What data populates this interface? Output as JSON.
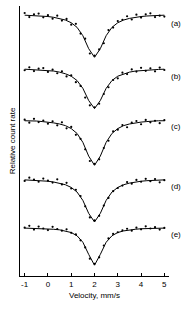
{
  "chart_data": {
    "type": "scatter",
    "x_label": "Velocity, mm/s",
    "y_label": "Relative count rate",
    "xlim": [
      -1.2,
      5.2
    ],
    "xticks": [
      -1,
      0,
      1,
      2,
      3,
      4,
      5
    ],
    "ylim": [
      0,
      100
    ],
    "tick_labels": "x",
    "grid": false,
    "series": [
      {
        "name": "(a)",
        "type": "scatter",
        "marker": "dot",
        "color": "#000000",
        "x": [
          -1,
          -0.8,
          -0.6,
          -0.4,
          -0.2,
          0,
          0.2,
          0.4,
          0.6,
          0.8,
          1,
          1.2,
          1.4,
          1.6,
          1.8,
          2,
          2.2,
          2.4,
          2.6,
          2.8,
          3,
          3.2,
          3.4,
          3.6,
          3.8,
          4,
          4.2,
          4.4,
          4.6,
          4.8,
          5
        ],
        "values": [
          97.4,
          95.9,
          96.9,
          97.2,
          95.8,
          96.6,
          95.3,
          96.4,
          94.6,
          95.2,
          93.1,
          93.4,
          89.8,
          87.9,
          82.4,
          81.6,
          83.9,
          86.2,
          91.1,
          92.0,
          94.4,
          94.9,
          96.2,
          95.0,
          96.8,
          95.7,
          96.9,
          97.3,
          95.9,
          96.4,
          96.1
        ]
      },
      {
        "type": "line",
        "line_style": "solid",
        "color": "#000000",
        "x": [
          -1,
          -0.75,
          -0.5,
          -0.25,
          0,
          0.25,
          0.5,
          0.75,
          1,
          1.25,
          1.5,
          1.75,
          2,
          2.25,
          2.5,
          2.75,
          3,
          3.25,
          3.5,
          3.75,
          4,
          4.25,
          4.5,
          4.75,
          5
        ],
        "values": [
          96.6,
          96.5,
          96.4,
          96.3,
          96.1,
          95.8,
          95.4,
          94.8,
          93.8,
          92.1,
          89.0,
          84.2,
          81.0,
          84.2,
          89.0,
          92.1,
          93.8,
          94.8,
          95.4,
          95.8,
          96.1,
          96.3,
          96.4,
          96.5,
          96.6
        ]
      },
      {
        "name": "(b)",
        "type": "scatter",
        "marker": "dot",
        "color": "#000000",
        "x": [
          -1,
          -0.8,
          -0.6,
          -0.4,
          -0.2,
          0,
          0.2,
          0.4,
          0.6,
          0.8,
          1,
          1.2,
          1.4,
          1.6,
          1.8,
          2,
          2.2,
          2.4,
          2.6,
          2.8,
          3,
          3.2,
          3.4,
          3.6,
          3.8,
          4,
          4.2,
          4.4,
          4.6,
          4.8,
          5
        ],
        "values": [
          76.2,
          77.3,
          75.9,
          76.8,
          77.0,
          75.6,
          76.4,
          75.1,
          75.8,
          73.9,
          74.3,
          71.8,
          70.4,
          66.1,
          63.2,
          62.5,
          63.8,
          67.4,
          69.9,
          72.6,
          73.2,
          75.3,
          74.8,
          76.5,
          75.7,
          77.1,
          76.0,
          76.9,
          75.8,
          77.2,
          76.3
        ]
      },
      {
        "type": "line",
        "line_style": "solid",
        "color": "#000000",
        "x": [
          -1,
          -0.75,
          -0.5,
          -0.25,
          0,
          0.25,
          0.5,
          0.75,
          1,
          1.25,
          1.5,
          1.75,
          2,
          2.25,
          2.5,
          2.75,
          3,
          3.25,
          3.5,
          3.75,
          4,
          4.25,
          4.5,
          4.75,
          5
        ],
        "values": [
          76.6,
          76.5,
          76.4,
          76.3,
          76.1,
          75.9,
          75.5,
          74.9,
          74.0,
          72.4,
          69.5,
          65.0,
          62.0,
          65.0,
          69.5,
          72.4,
          74.0,
          74.9,
          75.5,
          75.9,
          76.1,
          76.3,
          76.4,
          76.5,
          76.6
        ]
      },
      {
        "name": "(c)",
        "type": "scatter",
        "marker": "dot",
        "color": "#000000",
        "x": [
          -1,
          -0.8,
          -0.6,
          -0.4,
          -0.2,
          0,
          0.2,
          0.4,
          0.6,
          0.8,
          1,
          1.2,
          1.4,
          1.6,
          1.8,
          2,
          2.2,
          2.4,
          2.6,
          2.8,
          3,
          3.2,
          3.4,
          3.6,
          3.8,
          4,
          4.2,
          4.4,
          4.6,
          4.8,
          5
        ],
        "values": [
          57.9,
          56.8,
          58.2,
          57.0,
          57.6,
          56.4,
          57.3,
          55.8,
          56.9,
          54.7,
          55.2,
          52.3,
          50.8,
          46.9,
          42.6,
          41.5,
          43.2,
          47.4,
          50.1,
          53.6,
          54.2,
          55.9,
          55.1,
          56.8,
          57.4,
          56.2,
          57.8,
          56.9,
          57.5,
          56.6,
          57.7
        ]
      },
      {
        "type": "line",
        "line_style": "solid",
        "color": "#000000",
        "x": [
          -1,
          -0.75,
          -0.5,
          -0.25,
          0,
          0.25,
          0.5,
          0.75,
          1,
          1.25,
          1.5,
          1.75,
          2,
          2.25,
          2.5,
          2.75,
          3,
          3.25,
          3.5,
          3.75,
          4,
          4.25,
          4.5,
          4.75,
          5
        ],
        "values": [
          57.5,
          57.5,
          57.4,
          57.2,
          57.0,
          56.7,
          56.3,
          55.7,
          54.6,
          52.8,
          49.5,
          44.4,
          41.0,
          44.4,
          49.5,
          52.8,
          54.6,
          55.7,
          56.3,
          56.7,
          57.0,
          57.2,
          57.4,
          57.5,
          57.5
        ]
      },
      {
        "name": "(d)",
        "type": "scatter",
        "marker": "dot",
        "color": "#000000",
        "x": [
          -1,
          -0.8,
          -0.6,
          -0.4,
          -0.2,
          0,
          0.2,
          0.4,
          0.6,
          0.8,
          1,
          1.2,
          1.4,
          1.6,
          1.8,
          2,
          2.2,
          2.4,
          2.6,
          2.8,
          3,
          3.2,
          3.4,
          3.6,
          3.8,
          4,
          4.2,
          4.4,
          4.6,
          4.8,
          5
        ],
        "values": [
          35.2,
          36.4,
          35.7,
          34.9,
          36.1,
          35.3,
          34.6,
          35.8,
          33.9,
          34.5,
          32.4,
          31.9,
          29.6,
          25.8,
          21.7,
          20.6,
          22.3,
          26.1,
          28.9,
          31.4,
          32.6,
          33.5,
          34.8,
          34.2,
          35.6,
          34.9,
          36.0,
          35.1,
          35.9,
          34.7,
          35.5
        ]
      },
      {
        "type": "line",
        "line_style": "solid",
        "color": "#000000",
        "x": [
          -1,
          -0.75,
          -0.5,
          -0.25,
          0,
          0.25,
          0.5,
          0.75,
          1,
          1.25,
          1.5,
          1.75,
          2,
          2.25,
          2.5,
          2.75,
          3,
          3.25,
          3.5,
          3.75,
          4,
          4.25,
          4.5,
          4.75,
          5
        ],
        "values": [
          35.6,
          35.5,
          35.4,
          35.3,
          35.1,
          34.8,
          34.4,
          33.8,
          32.8,
          31.1,
          28.0,
          23.2,
          20.0,
          23.2,
          28.0,
          31.1,
          32.8,
          33.8,
          34.4,
          34.8,
          35.1,
          35.3,
          35.4,
          35.5,
          35.6
        ]
      },
      {
        "name": "(e)",
        "type": "scatter",
        "marker": "dot",
        "color": "#000000",
        "x": [
          -1,
          -0.8,
          -0.6,
          -0.4,
          -0.2,
          0,
          0.2,
          0.4,
          0.6,
          0.8,
          1,
          1.2,
          1.4,
          1.6,
          1.8,
          2,
          2.2,
          2.4,
          2.6,
          2.8,
          3,
          3.2,
          3.4,
          3.6,
          3.8,
          4,
          4.2,
          4.4,
          4.6,
          4.8,
          5
        ],
        "values": [
          17.9,
          18.6,
          17.2,
          18.3,
          17.6,
          17.0,
          18.2,
          17.4,
          16.8,
          17.3,
          16.0,
          15.4,
          13.2,
          10.6,
          6.4,
          4.5,
          6.9,
          11.3,
          13.9,
          15.6,
          16.2,
          16.9,
          17.5,
          16.8,
          17.9,
          17.3,
          18.4,
          17.6,
          18.1,
          17.2,
          17.8
        ]
      },
      {
        "type": "line",
        "line_style": "solid",
        "color": "#000000",
        "x": [
          -1,
          -0.75,
          -0.5,
          -0.25,
          0,
          0.25,
          0.5,
          0.75,
          1,
          1.25,
          1.5,
          1.75,
          2,
          2.25,
          2.5,
          2.75,
          3,
          3.25,
          3.5,
          3.75,
          4,
          4.25,
          4.5,
          4.75,
          5
        ],
        "values": [
          17.75,
          17.7,
          17.65,
          17.6,
          17.5,
          17.3,
          17.1,
          16.7,
          16.1,
          14.9,
          12.5,
          8.0,
          4.0,
          8.0,
          12.5,
          14.9,
          16.1,
          16.7,
          17.1,
          17.3,
          17.5,
          17.6,
          17.65,
          17.7,
          17.75
        ]
      }
    ]
  }
}
